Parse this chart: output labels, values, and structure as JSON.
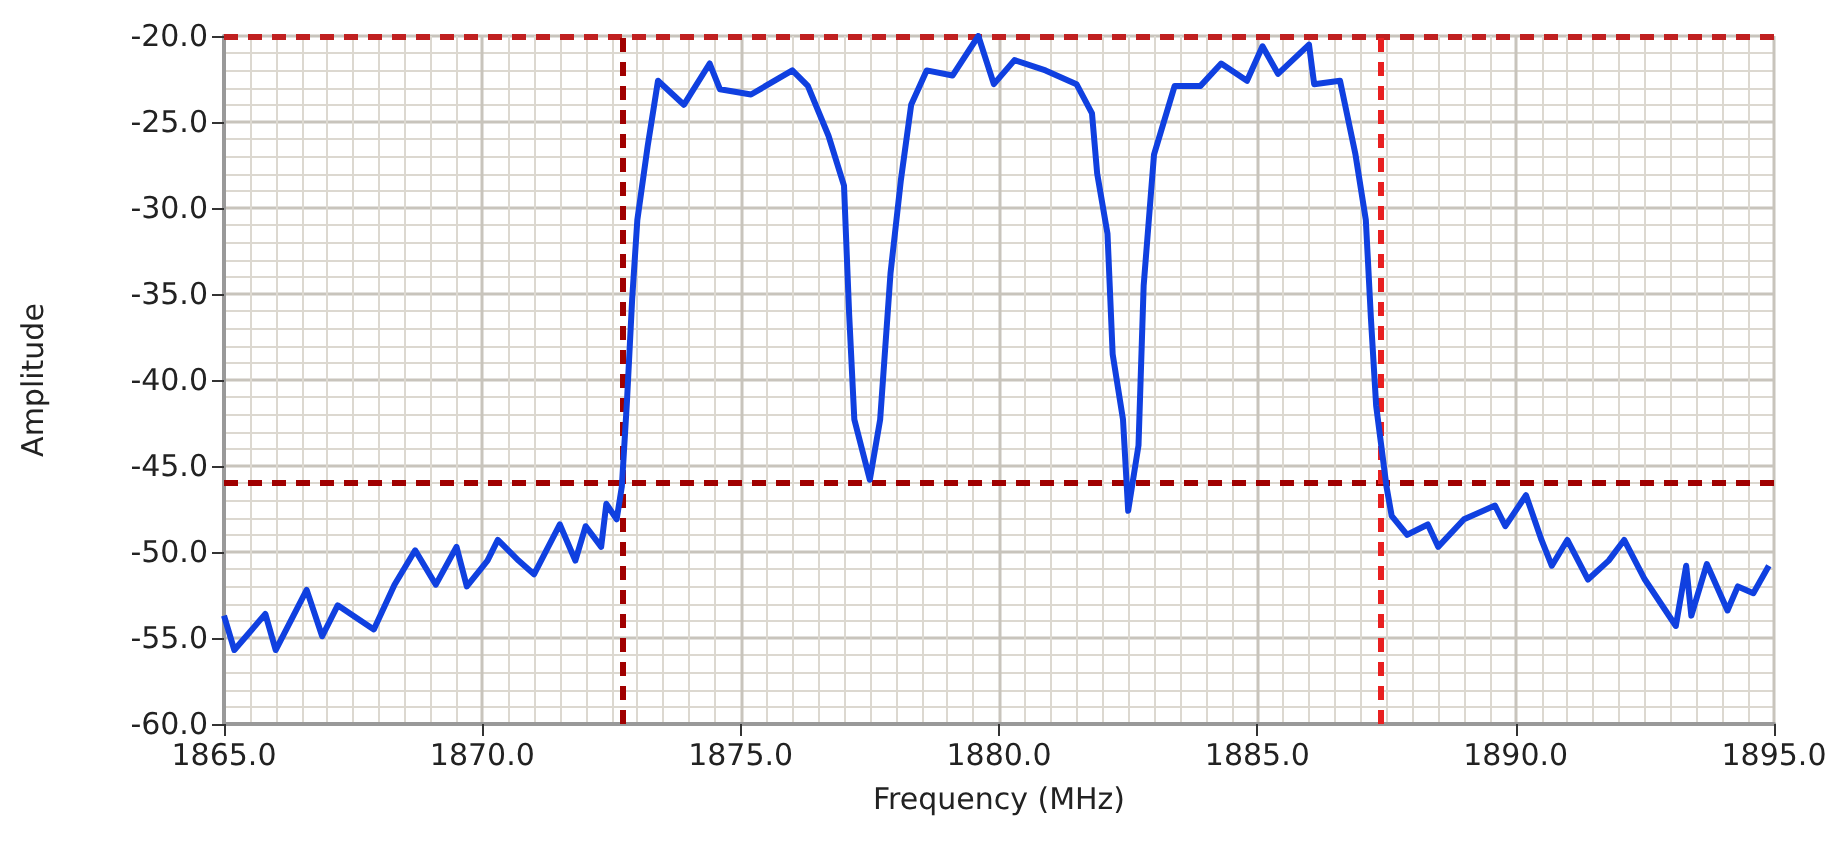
{
  "chart_data": {
    "type": "line",
    "xlabel": "Frequency (MHz)",
    "ylabel": "Amplitude",
    "xlim": [
      1865,
      1895
    ],
    "ylim": [
      -60,
      -20
    ],
    "xticks": [
      {
        "value": 1865,
        "label": "1865.0"
      },
      {
        "value": 1870,
        "label": "1870.0"
      },
      {
        "value": 1875,
        "label": "1875.0"
      },
      {
        "value": 1880,
        "label": "1880.0"
      },
      {
        "value": 1885,
        "label": "1885.0"
      },
      {
        "value": 1890,
        "label": "1890.0"
      },
      {
        "value": 1895,
        "label": "1895.0"
      }
    ],
    "yticks": [
      {
        "value": -60,
        "label": "-60.0"
      },
      {
        "value": -55,
        "label": "-55.0"
      },
      {
        "value": -50,
        "label": "-50.0"
      },
      {
        "value": -45,
        "label": "-45.0"
      },
      {
        "value": -40,
        "label": "-40.0"
      },
      {
        "value": -35,
        "label": "-35.0"
      },
      {
        "value": -30,
        "label": "-30.0"
      },
      {
        "value": -25,
        "label": "-25.0"
      },
      {
        "value": -20,
        "label": "-20.0"
      }
    ],
    "grid": true,
    "marker": "none",
    "x": [
      1865.0,
      1865.2,
      1865.8,
      1866.0,
      1866.6,
      1866.9,
      1867.2,
      1867.9,
      1868.3,
      1868.7,
      1869.1,
      1869.5,
      1869.7,
      1870.1,
      1870.3,
      1870.7,
      1871.0,
      1871.5,
      1871.8,
      1872.0,
      1872.3,
      1872.4,
      1872.6,
      1872.7,
      1872.8,
      1872.9,
      1873.0,
      1873.2,
      1873.4,
      1873.9,
      1874.4,
      1874.6,
      1875.2,
      1876.0,
      1876.3,
      1876.7,
      1877.0,
      1877.1,
      1877.2,
      1877.5,
      1877.7,
      1877.9,
      1878.1,
      1878.3,
      1878.6,
      1879.1,
      1879.6,
      1879.9,
      1880.3,
      1880.9,
      1881.5,
      1881.8,
      1881.9,
      1882.1,
      1882.2,
      1882.4,
      1882.5,
      1882.7,
      1882.8,
      1883.0,
      1883.4,
      1883.9,
      1884.3,
      1884.8,
      1885.1,
      1885.4,
      1886.0,
      1886.1,
      1886.6,
      1886.9,
      1887.1,
      1887.2,
      1887.3,
      1887.5,
      1887.6,
      1887.9,
      1888.3,
      1888.5,
      1889.0,
      1889.6,
      1889.8,
      1890.2,
      1890.5,
      1890.7,
      1891.0,
      1891.4,
      1891.8,
      1892.1,
      1892.5,
      1893.1,
      1893.3,
      1893.4,
      1893.7,
      1894.1,
      1894.3,
      1894.6,
      1894.9
    ],
    "series": [
      {
        "color": "#1040e0",
        "values": [
          -53.7,
          -55.7,
          -53.6,
          -55.7,
          -52.2,
          -54.9,
          -53.1,
          -54.5,
          -51.9,
          -49.9,
          -51.9,
          -49.7,
          -52.0,
          -50.5,
          -49.3,
          -50.5,
          -51.3,
          -48.4,
          -50.5,
          -48.5,
          -49.7,
          -47.2,
          -48.1,
          -46.2,
          -41.2,
          -35.3,
          -30.7,
          -26.4,
          -22.6,
          -24.0,
          -21.6,
          -23.1,
          -23.4,
          -22.0,
          -22.9,
          -25.8,
          -28.7,
          -36.2,
          -42.3,
          -45.8,
          -42.3,
          -33.8,
          -28.4,
          -24.0,
          -22.0,
          -22.3,
          -20.0,
          -22.8,
          -21.4,
          -22.0,
          -22.8,
          -24.5,
          -28.0,
          -31.5,
          -38.5,
          -42.3,
          -47.6,
          -43.8,
          -34.5,
          -26.9,
          -22.9,
          -22.9,
          -21.6,
          -22.6,
          -20.6,
          -22.2,
          -20.5,
          -22.8,
          -22.6,
          -26.9,
          -30.7,
          -36.5,
          -41.5,
          -46.2,
          -47.9,
          -49.0,
          -48.4,
          -49.7,
          -48.1,
          -47.3,
          -48.5,
          -46.7,
          -49.3,
          -50.8,
          -49.3,
          -51.6,
          -50.5,
          -49.3,
          -51.6,
          -54.3,
          -50.8,
          -53.7,
          -50.7,
          -53.4,
          -52.0,
          -52.4,
          -50.8
        ]
      }
    ],
    "ref_lines": [
      {
        "axis": "y",
        "value": -46.0,
        "color": "#a00000",
        "line_style": "dashed"
      },
      {
        "axis": "y",
        "value": -20.0,
        "color": "#c02020",
        "line_style": "dashed"
      },
      {
        "axis": "x",
        "value": 1872.7,
        "color": "#a00000",
        "line_style": "dashed"
      },
      {
        "axis": "x",
        "value": 1887.4,
        "color": "#e82020",
        "line_style": "dashed"
      }
    ]
  }
}
